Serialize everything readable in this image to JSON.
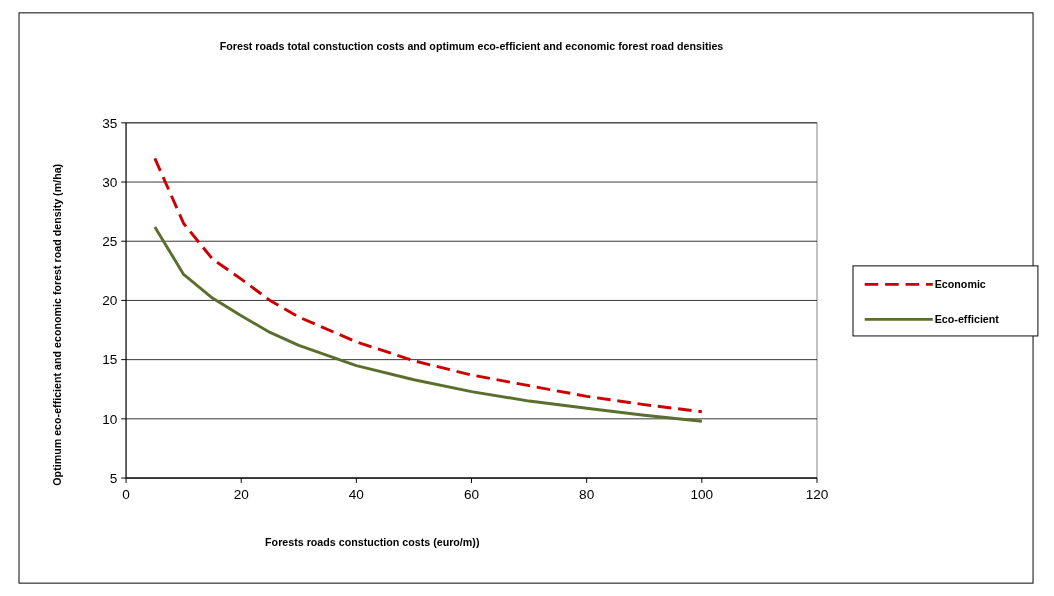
{
  "chart_data": {
    "type": "line",
    "title": "Forest roads total constuction costs and optimum eco-efficient and economic forest road densities",
    "xlabel": "Forests roads constuction costs (euro/m))",
    "ylabel": "Optimum eco-efficient and economic forest road density (m/ha)",
    "x": [
      5,
      10,
      15,
      20,
      25,
      30,
      40,
      50,
      60,
      70,
      80,
      90,
      100
    ],
    "series": [
      {
        "name": "Economic",
        "color": "#cc0000",
        "line_style": "dashed",
        "values": [
          32,
          26.5,
          23.5,
          21.8,
          20,
          18.6,
          16.5,
          14.9,
          13.7,
          12.8,
          11.9,
          11.2,
          10.6
        ]
      },
      {
        "name": "Eco-efficient",
        "color": "#5a6e2e",
        "line_style": "solid",
        "values": [
          26.2,
          22.2,
          20.2,
          18.7,
          17.3,
          16.2,
          14.5,
          13.3,
          12.3,
          11.5,
          10.9,
          10.3,
          9.8
        ]
      }
    ],
    "xlim": [
      0,
      120
    ],
    "xticks": [
      0,
      20,
      40,
      60,
      80,
      100,
      120
    ],
    "ylim": [
      5,
      35
    ],
    "yticks": [
      5,
      10,
      15,
      20,
      25,
      30,
      35
    ],
    "grid": "y",
    "legend": "right",
    "marker": "none"
  }
}
